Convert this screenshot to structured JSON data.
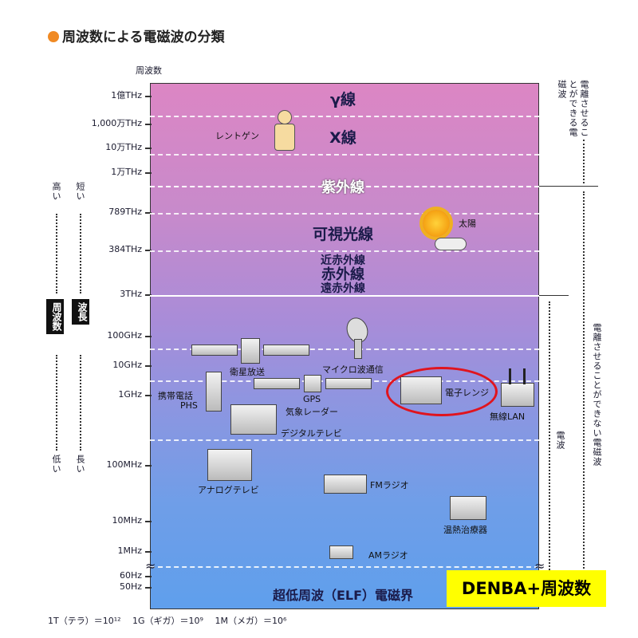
{
  "title": "周波数による電磁波の分類",
  "axis_title": "周波数",
  "ticks": [
    "1億THz",
    "1,000万THz",
    "10万THz",
    "1万THz",
    "789THz",
    "384THz",
    "3THz",
    "100GHz",
    "10GHz",
    "1GHz",
    "100MHz",
    "10MHz",
    "1MHz",
    "60Hz",
    "50Hz"
  ],
  "bands": {
    "gamma": "γ線",
    "xray": "X線",
    "uv": "紫外線",
    "visible": "可視光線",
    "near_ir": "近赤外線",
    "ir": "赤外線",
    "far_ir": "遠赤外線",
    "elf": "超低周波（ELF）電磁界"
  },
  "items": {
    "xray_exam": "レントゲン",
    "sun": "太陽",
    "satellite": "衛星放送",
    "microwave": "マイクロ波通信",
    "phone": "携帯電話",
    "phs": "PHS",
    "gps": "GPS",
    "radar": "気象レーダー",
    "oven": "電子レンジ",
    "wlan": "無線LAN",
    "digital_tv": "デジタルテレビ",
    "analog_tv": "アナログテレビ",
    "fm": "FMラジオ",
    "therapy": "温熱治療器",
    "am": "AMラジオ"
  },
  "left": {
    "high": "高い",
    "short": "短い",
    "freq": "周波数",
    "wave": "波長",
    "low": "低い",
    "long": "長い"
  },
  "right": {
    "ionizing": "電離させることができる電磁波",
    "non_ionizing": "電離させることができない電磁波",
    "radio": "電波"
  },
  "badge": "DENBA+周波数",
  "footnote": "1T（テラ）＝10¹²　 1G（ギガ）＝10⁹　 1M（メガ）＝10⁶",
  "colors": {
    "accent_dot": "#f08a24",
    "highlight": "#ffff00",
    "circle": "#e0141e"
  }
}
